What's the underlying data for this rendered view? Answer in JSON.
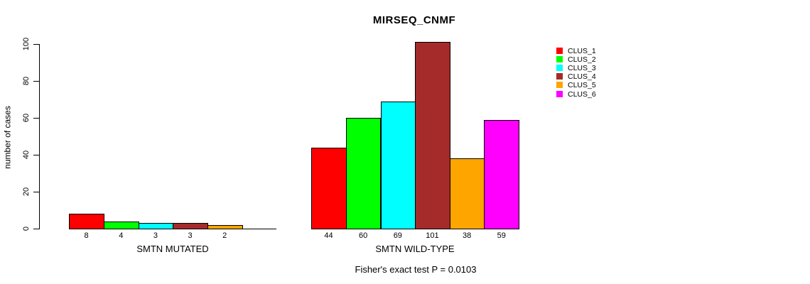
{
  "title": "MIRSEQ_CNMF",
  "footer": "Fisher's exact test P = 0.0103",
  "y_axis": {
    "label": "number of cases",
    "tick_labels": [
      "0",
      "20",
      "40",
      "60",
      "80",
      "100"
    ]
  },
  "chart_data": {
    "type": "bar",
    "title": "MIRSEQ_CNMF",
    "categories": [
      "SMTN MUTATED",
      "SMTN WILD-TYPE"
    ],
    "series": [
      {
        "name": "CLUS_1",
        "color": "#FF0000",
        "values": [
          8,
          44
        ]
      },
      {
        "name": "CLUS_2",
        "color": "#00FF00",
        "values": [
          4,
          60
        ]
      },
      {
        "name": "CLUS_3",
        "color": "#00FFFF",
        "values": [
          3,
          69
        ]
      },
      {
        "name": "CLUS_4",
        "color": "#A52A2A",
        "values": [
          3,
          101
        ]
      },
      {
        "name": "CLUS_5",
        "color": "#FFA500",
        "values": [
          2,
          38
        ]
      },
      {
        "name": "CLUS_6",
        "color": "#FF00FF",
        "values": [
          0,
          59
        ]
      }
    ],
    "bar_value_labels": {
      "SMTN MUTATED": [
        "8",
        "4",
        "3",
        "3",
        "2",
        ""
      ],
      "SMTN WILD-TYPE": [
        "44",
        "60",
        "69",
        "101",
        "38",
        "59"
      ]
    },
    "xlabel": "",
    "ylabel": "number of cases",
    "ylim": [
      0,
      100
    ],
    "y_ticks": [
      0,
      20,
      40,
      60,
      80,
      100
    ],
    "grid": false,
    "legend_position": "right",
    "legend_entries": [
      "CLUS_1",
      "CLUS_2",
      "CLUS_3",
      "CLUS_4",
      "CLUS_5",
      "CLUS_6"
    ],
    "annotation": "Fisher's exact test P = 0.0103"
  }
}
